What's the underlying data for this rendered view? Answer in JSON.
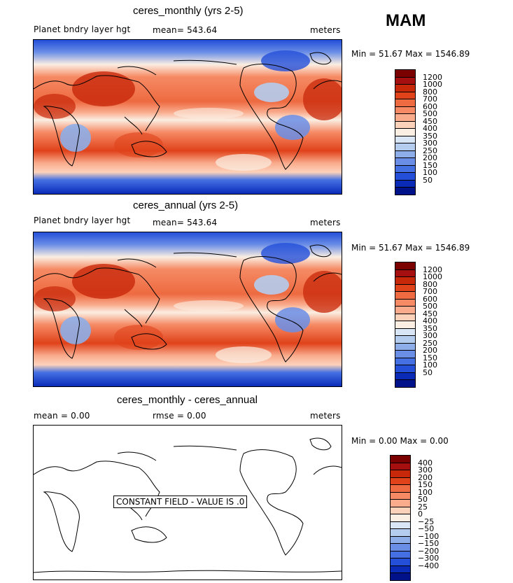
{
  "season": "MAM",
  "panels": [
    {
      "title": "ceres_monthly (yrs 2-5)",
      "left_text": "Planet bndry layer hgt",
      "mid_text": "mean= 543.64",
      "units": "meters",
      "minmax": "Min =   51.67 Max = 1546.89",
      "field": "ceres"
    },
    {
      "title": "ceres_annual (yrs 2-5)",
      "left_text": "Planet bndry layer hgt",
      "mid_text": "mean= 543.64",
      "units": "meters",
      "minmax": "Min =   51.67 Max = 1546.89",
      "field": "ceres"
    },
    {
      "title": "ceres_monthly - ceres_annual",
      "left_text": "mean =     0.00",
      "mid_text": "rmse =     0.00",
      "units": "meters",
      "minmax": "Min =   0.00 Max =    0.00",
      "field": "constant",
      "constant_label": "CONSTANT FIELD - VALUE IS .0"
    }
  ],
  "colorbars": [
    {
      "labels": [
        "1200",
        "1000",
        "800",
        "700",
        "600",
        "500",
        "450",
        "400",
        "350",
        "300",
        "250",
        "200",
        "150",
        "100",
        "50"
      ],
      "colors": [
        "#7b0000",
        "#a50f0f",
        "#c8280a",
        "#e0421a",
        "#ee6a40",
        "#f58a64",
        "#f9ab8c",
        "#fdd2ba",
        "#fbeee2",
        "#d9e6f5",
        "#b4ccee",
        "#8daee8",
        "#6a8ee6",
        "#4470e3",
        "#234fd9",
        "#0a2bb8",
        "#00128a"
      ]
    },
    {
      "labels": [
        "1200",
        "1000",
        "800",
        "700",
        "600",
        "500",
        "450",
        "400",
        "350",
        "300",
        "250",
        "200",
        "150",
        "100",
        "50"
      ],
      "colors": [
        "#7b0000",
        "#a50f0f",
        "#c8280a",
        "#e0421a",
        "#ee6a40",
        "#f58a64",
        "#f9ab8c",
        "#fdd2ba",
        "#fbeee2",
        "#d9e6f5",
        "#b4ccee",
        "#8daee8",
        "#6a8ee6",
        "#4470e3",
        "#234fd9",
        "#0a2bb8",
        "#00128a"
      ]
    },
    {
      "labels": [
        "400",
        "300",
        "200",
        "150",
        "100",
        "50",
        "25",
        "0",
        "−25",
        "−50",
        "−100",
        "−150",
        "−200",
        "−300",
        "−400"
      ],
      "colors": [
        "#7b0000",
        "#a50f0f",
        "#c8280a",
        "#e0421a",
        "#ee6a40",
        "#f58a64",
        "#f9ab8c",
        "#fdd2ba",
        "#fbeee2",
        "#d9e6f5",
        "#b4ccee",
        "#8daee8",
        "#6a8ee6",
        "#4470e3",
        "#234fd9",
        "#0a2bb8",
        "#00128a"
      ]
    }
  ]
}
